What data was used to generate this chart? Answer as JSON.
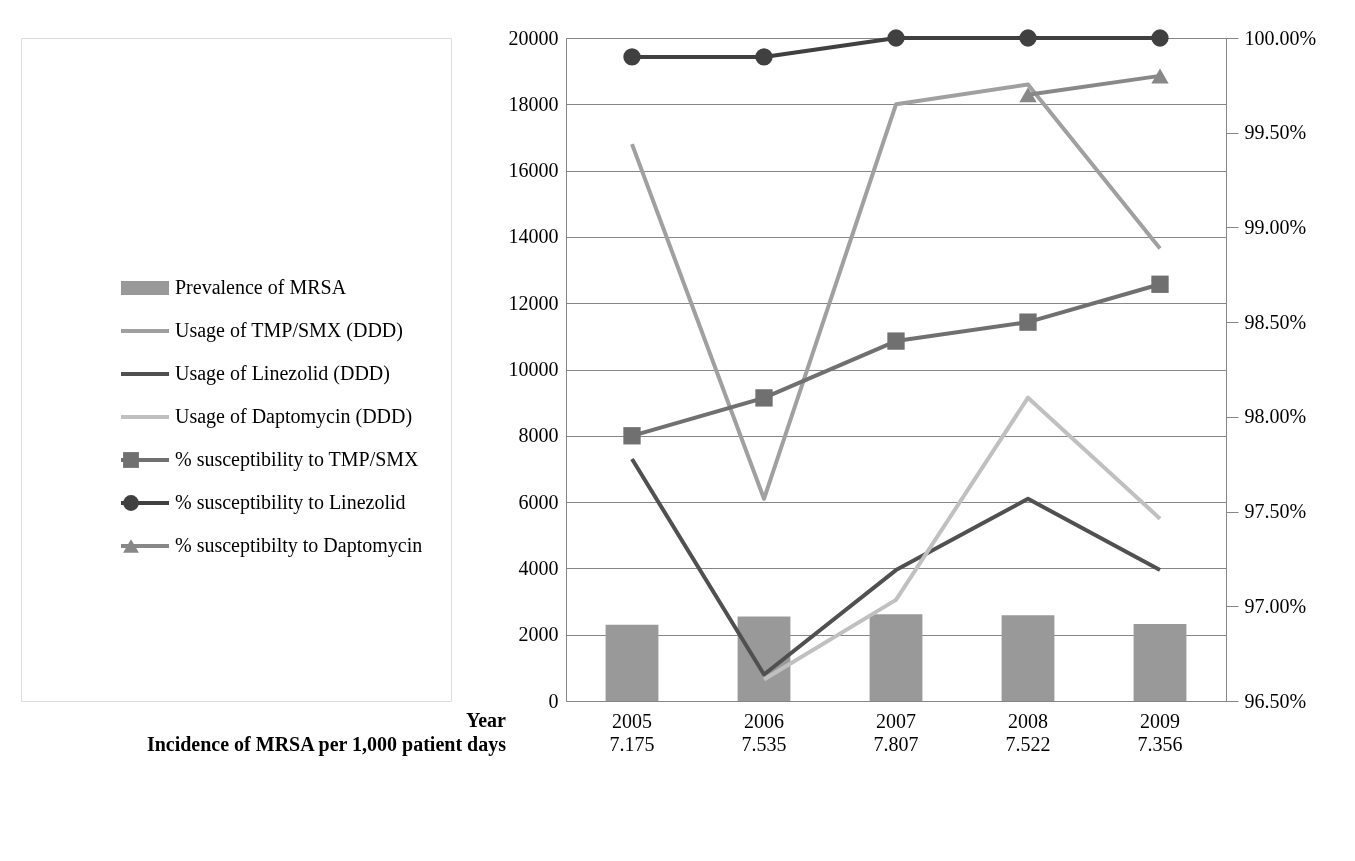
{
  "chart_data": {
    "type": "bar",
    "categories": [
      "2005",
      "2006",
      "2007",
      "2008",
      "2009"
    ],
    "xlabel": "Year",
    "annotations": [
      "Incidence of MRSA per  1,000 patient days",
      "7.175",
      "7.535",
      "7.807",
      "7.522",
      "7.356"
    ],
    "series": [
      {
        "name": "Prevalence of MRSA",
        "color": "#999999",
        "values": [
          2300,
          2550,
          2620,
          2590,
          2320
        ]
      },
      {
        "name": "Usage of TMP/SMX (DDD)",
        "type": "line",
        "marker": "none",
        "color": "#a0a0a0",
        "values": [
          16800,
          6100,
          18000,
          18600,
          13650
        ]
      },
      {
        "name": "Usage of Linezolid (DDD)",
        "type": "line",
        "marker": "none",
        "color": "#505050",
        "values": [
          7300,
          800,
          3950,
          6100,
          3950
        ]
      },
      {
        "name": "Usage of Daptomycin (DDD)",
        "type": "line",
        "marker": "none",
        "color": "#c0c0c0",
        "values": [
          null,
          650,
          3050,
          9150,
          5500
        ]
      },
      {
        "name": "% susceptibility to TMP/SMX",
        "type": "line",
        "marker": "square",
        "axis": "y2",
        "color": "#707070",
        "values": [
          97.9,
          98.1,
          98.4,
          98.5,
          98.7
        ]
      },
      {
        "name": "% susceptibility to Linezolid",
        "type": "line",
        "marker": "circle",
        "axis": "y2",
        "color": "#404040",
        "values": [
          99.9,
          99.9,
          100,
          100,
          100
        ]
      },
      {
        "name": "% susceptibilty to Daptomycin",
        "type": "line",
        "marker": "triangle",
        "axis": "y2",
        "color": "#888888",
        "values": [
          null,
          null,
          null,
          99.7,
          99.8
        ]
      }
    ],
    "ylim": [
      0,
      20000
    ],
    "yticks": [
      0,
      2000,
      4000,
      6000,
      8000,
      10000,
      12000,
      14000,
      16000,
      18000,
      20000
    ],
    "y2lim": [
      96.5,
      100
    ],
    "y2ticks": [
      {
        "value": 96.5,
        "label": "96.50%"
      },
      {
        "value": 97,
        "label": "97.00%"
      },
      {
        "value": 97.5,
        "label": "97.50%"
      },
      {
        "value": 98,
        "label": "98.00%"
      },
      {
        "value": 98.5,
        "label": "98.50%"
      },
      {
        "value": 99,
        "label": "99.00%"
      },
      {
        "value": 99.5,
        "label": "99.50%"
      },
      {
        "value": 100,
        "label": "100.00%"
      }
    ],
    "grid": "y",
    "legend": "left"
  }
}
